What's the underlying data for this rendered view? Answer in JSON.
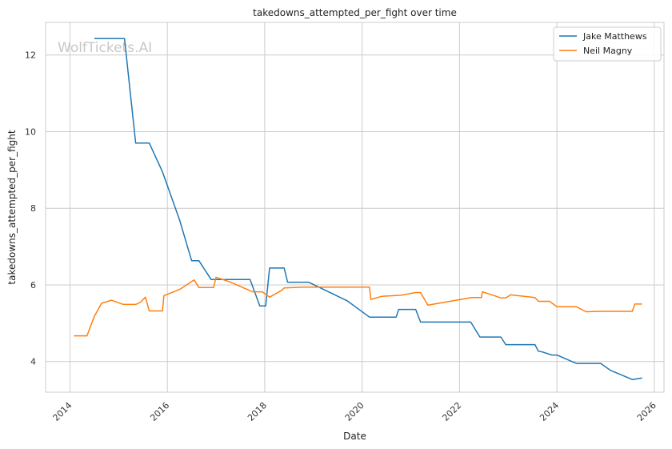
{
  "chart_data": {
    "type": "line",
    "title": "takedowns_attempted_per_fight over time",
    "xlabel": "Date",
    "ylabel": "takedowns_attempted_per_fight",
    "watermark": "WolfTickets.AI",
    "xlim": [
      2013.5,
      2026.2
    ],
    "ylim": [
      3.2,
      12.85
    ],
    "x_ticks": [
      2014,
      2016,
      2018,
      2020,
      2022,
      2024,
      2026
    ],
    "x_tick_labels": [
      "2014",
      "2016",
      "2018",
      "2020",
      "2022",
      "2024",
      "2026"
    ],
    "y_ticks": [
      4,
      6,
      8,
      10,
      12
    ],
    "y_tick_labels": [
      "4",
      "6",
      "8",
      "10",
      "12"
    ],
    "grid": true,
    "legend_position": "top-right",
    "series": [
      {
        "name": "Jake Matthews",
        "color": "#1f77b4",
        "points": [
          [
            2014.5,
            12.43
          ],
          [
            2015.12,
            12.43
          ],
          [
            2015.35,
            9.7
          ],
          [
            2015.63,
            9.7
          ],
          [
            2015.9,
            8.95
          ],
          [
            2016.25,
            7.7
          ],
          [
            2016.5,
            6.63
          ],
          [
            2016.65,
            6.63
          ],
          [
            2016.9,
            6.14
          ],
          [
            2017.7,
            6.14
          ],
          [
            2017.9,
            5.45
          ],
          [
            2018.02,
            5.45
          ],
          [
            2018.1,
            6.44
          ],
          [
            2018.4,
            6.44
          ],
          [
            2018.47,
            6.07
          ],
          [
            2018.9,
            6.07
          ],
          [
            2019.7,
            5.58
          ],
          [
            2020.15,
            5.16
          ],
          [
            2020.7,
            5.16
          ],
          [
            2020.75,
            5.36
          ],
          [
            2021.1,
            5.36
          ],
          [
            2021.2,
            5.03
          ],
          [
            2022.23,
            5.03
          ],
          [
            2022.42,
            4.64
          ],
          [
            2022.85,
            4.64
          ],
          [
            2022.95,
            4.44
          ],
          [
            2023.55,
            4.44
          ],
          [
            2023.62,
            4.27
          ],
          [
            2023.7,
            4.25
          ],
          [
            2023.9,
            4.17
          ],
          [
            2024.0,
            4.17
          ],
          [
            2024.4,
            3.95
          ],
          [
            2024.9,
            3.95
          ],
          [
            2025.1,
            3.77
          ],
          [
            2025.55,
            3.53
          ],
          [
            2025.75,
            3.57
          ]
        ]
      },
      {
        "name": "Neil Magny",
        "color": "#ff7f0e",
        "points": [
          [
            2014.08,
            4.67
          ],
          [
            2014.35,
            4.67
          ],
          [
            2014.5,
            5.18
          ],
          [
            2014.65,
            5.52
          ],
          [
            2014.85,
            5.6
          ],
          [
            2015.1,
            5.49
          ],
          [
            2015.35,
            5.49
          ],
          [
            2015.45,
            5.55
          ],
          [
            2015.55,
            5.68
          ],
          [
            2015.63,
            5.32
          ],
          [
            2015.9,
            5.32
          ],
          [
            2015.93,
            5.72
          ],
          [
            2016.25,
            5.88
          ],
          [
            2016.55,
            6.13
          ],
          [
            2016.65,
            5.93
          ],
          [
            2016.95,
            5.93
          ],
          [
            2017.0,
            6.2
          ],
          [
            2017.3,
            6.07
          ],
          [
            2017.75,
            5.82
          ],
          [
            2017.95,
            5.82
          ],
          [
            2018.1,
            5.68
          ],
          [
            2018.35,
            5.86
          ],
          [
            2018.4,
            5.92
          ],
          [
            2018.8,
            5.94
          ],
          [
            2020.15,
            5.94
          ],
          [
            2020.18,
            5.62
          ],
          [
            2020.4,
            5.7
          ],
          [
            2020.8,
            5.73
          ],
          [
            2021.1,
            5.8
          ],
          [
            2021.2,
            5.8
          ],
          [
            2021.35,
            5.47
          ],
          [
            2022.25,
            5.67
          ],
          [
            2022.45,
            5.67
          ],
          [
            2022.47,
            5.82
          ],
          [
            2022.85,
            5.66
          ],
          [
            2022.95,
            5.66
          ],
          [
            2023.05,
            5.74
          ],
          [
            2023.55,
            5.67
          ],
          [
            2023.62,
            5.57
          ],
          [
            2023.85,
            5.57
          ],
          [
            2024.0,
            5.43
          ],
          [
            2024.4,
            5.43
          ],
          [
            2024.6,
            5.3
          ],
          [
            2024.9,
            5.31
          ],
          [
            2025.55,
            5.31
          ],
          [
            2025.6,
            5.5
          ],
          [
            2025.75,
            5.5
          ]
        ]
      }
    ]
  }
}
